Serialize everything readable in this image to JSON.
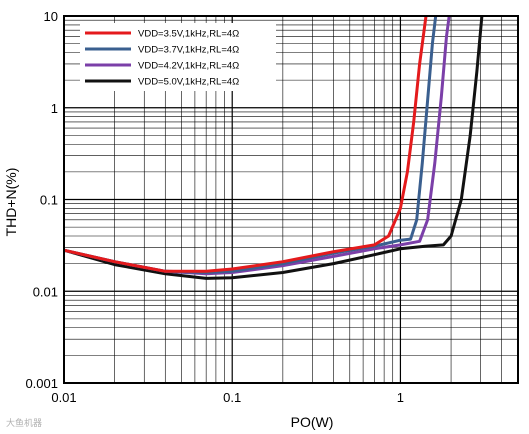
{
  "chart_data": {
    "type": "line",
    "xlabel": "PO(W)",
    "ylabel": "THD+N(%)",
    "x_scale": "log",
    "y_scale": "log",
    "xlim": [
      0.01,
      5
    ],
    "ylim": [
      0.001,
      10
    ],
    "x_ticks": [
      "0.01",
      "0.1",
      "1"
    ],
    "y_ticks": [
      "10",
      "1",
      "0.1",
      "0.01",
      "0.001"
    ],
    "grid": true,
    "legend_position": "top-left",
    "series": [
      {
        "name": "VDD=3.5V,1kHz,RL=4Ω",
        "color": "#e41a1c",
        "points": [
          [
            0.01,
            0.028
          ],
          [
            0.02,
            0.021
          ],
          [
            0.04,
            0.0165
          ],
          [
            0.07,
            0.0165
          ],
          [
            0.1,
            0.0175
          ],
          [
            0.2,
            0.021
          ],
          [
            0.4,
            0.027
          ],
          [
            0.7,
            0.032
          ],
          [
            0.85,
            0.04
          ],
          [
            1.0,
            0.08
          ],
          [
            1.1,
            0.2
          ],
          [
            1.2,
            0.7
          ],
          [
            1.3,
            3
          ],
          [
            1.42,
            10
          ]
        ]
      },
      {
        "name": "VDD=3.7V,1kHz,RL=4Ω",
        "color": "#3a5f8f",
        "points": [
          [
            0.01,
            0.028
          ],
          [
            0.02,
            0.021
          ],
          [
            0.04,
            0.0165
          ],
          [
            0.07,
            0.016
          ],
          [
            0.1,
            0.0165
          ],
          [
            0.2,
            0.02
          ],
          [
            0.4,
            0.026
          ],
          [
            0.7,
            0.031
          ],
          [
            1.0,
            0.036
          ],
          [
            1.15,
            0.037
          ],
          [
            1.25,
            0.06
          ],
          [
            1.35,
            0.25
          ],
          [
            1.45,
            1.2
          ],
          [
            1.55,
            5
          ],
          [
            1.62,
            10
          ]
        ]
      },
      {
        "name": "VDD=4.2V,1kHz,RL=4Ω",
        "color": "#7b3fa8",
        "points": [
          [
            0.01,
            0.028
          ],
          [
            0.02,
            0.021
          ],
          [
            0.04,
            0.0165
          ],
          [
            0.07,
            0.0155
          ],
          [
            0.1,
            0.016
          ],
          [
            0.2,
            0.019
          ],
          [
            0.4,
            0.024
          ],
          [
            0.7,
            0.029
          ],
          [
            1.0,
            0.032
          ],
          [
            1.3,
            0.035
          ],
          [
            1.45,
            0.06
          ],
          [
            1.6,
            0.25
          ],
          [
            1.75,
            1.3
          ],
          [
            1.88,
            6
          ],
          [
            1.95,
            10
          ]
        ]
      },
      {
        "name": "VDD=5.0V,1kHz,RL=4Ω",
        "color": "#111111",
        "points": [
          [
            0.01,
            0.028
          ],
          [
            0.02,
            0.0195
          ],
          [
            0.04,
            0.0155
          ],
          [
            0.07,
            0.0138
          ],
          [
            0.1,
            0.014
          ],
          [
            0.2,
            0.016
          ],
          [
            0.4,
            0.02
          ],
          [
            0.7,
            0.025
          ],
          [
            1.0,
            0.029
          ],
          [
            1.4,
            0.031
          ],
          [
            1.8,
            0.032
          ],
          [
            2.0,
            0.04
          ],
          [
            2.3,
            0.1
          ],
          [
            2.6,
            0.5
          ],
          [
            2.85,
            2.5
          ],
          [
            3.05,
            10
          ]
        ]
      }
    ]
  },
  "watermark": "大鱼机器"
}
